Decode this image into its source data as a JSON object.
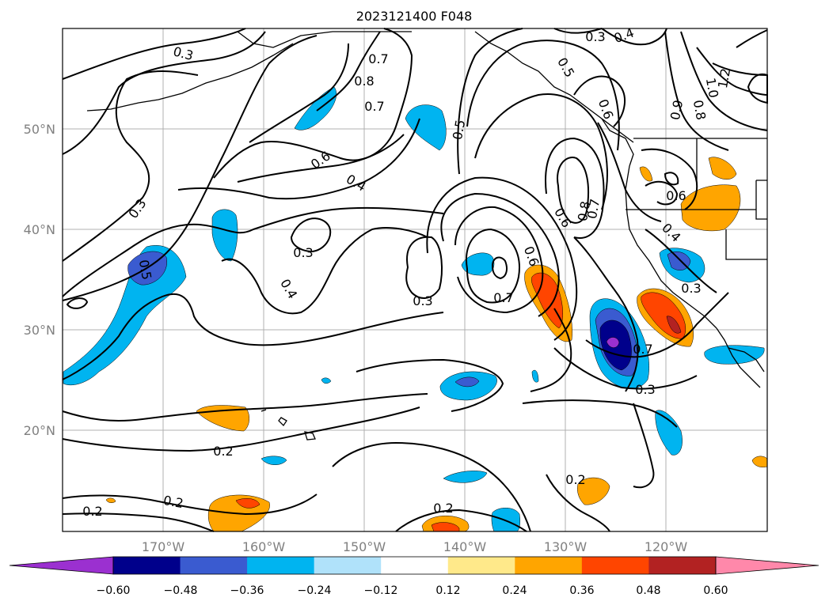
{
  "title": "2023121400 F048",
  "lat_labels": [
    "50°N",
    "40°N",
    "30°N",
    "20°N"
  ],
  "lon_labels": [
    "170°W",
    "160°W",
    "150°W",
    "140°W",
    "130°W",
    "120°W"
  ],
  "contour_labels": [
    "0.3",
    "0.4",
    "0.8",
    "0.7",
    "0.6",
    "0.4",
    "0.5",
    "0.3",
    "0.3",
    "0.4",
    "0.5",
    "0.3",
    "0.7",
    "0.6",
    "0.6",
    "0.8",
    "0.7",
    "0.6",
    "0.4",
    "0.3",
    "0.7",
    "0.3",
    "0.2",
    "0.2",
    "0.2",
    "0.2",
    "0.2",
    "1.2",
    "1.0",
    "0.9",
    "0.8",
    "0.3",
    "0.4",
    "0.6",
    "0.5"
  ],
  "colorbar": {
    "ticks": [
      "−0.60",
      "−0.48",
      "−0.36",
      "−0.24",
      "−0.12",
      "0.12",
      "0.24",
      "0.36",
      "0.48",
      "0.60"
    ],
    "colors": [
      "#9b30d0",
      "#00008b",
      "#3a5bd0",
      "#00b4f0",
      "#b0e2fa",
      "#ffffff",
      "#ffe98a",
      "#ffa500",
      "#ff4500",
      "#b22222",
      "#ff88aa"
    ]
  }
}
